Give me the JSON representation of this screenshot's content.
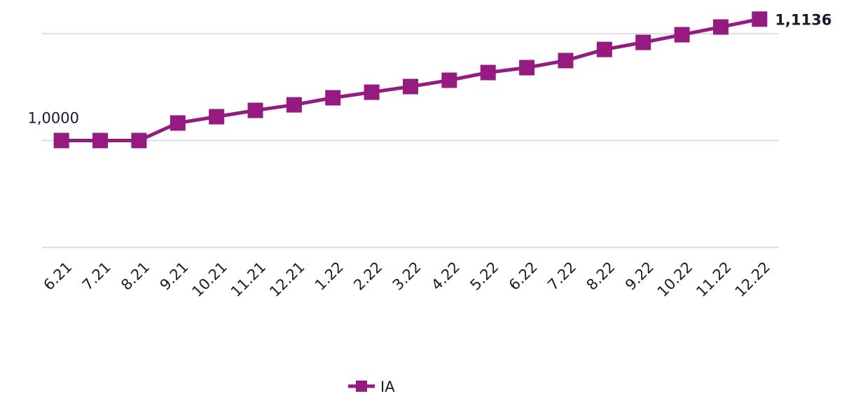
{
  "chart_data": {
    "type": "line",
    "categories": [
      "6.21",
      "7.21",
      "8.21",
      "9.21",
      "10.21",
      "11.21",
      "12.21",
      "1.22",
      "2.22",
      "3.22",
      "4.22",
      "5.22",
      "6.22",
      "7.22",
      "8.22",
      "9.22",
      "10.22",
      "11.22",
      "12.22"
    ],
    "series": [
      {
        "name": "IA",
        "color": "#951b81",
        "values": [
          1.0,
          1.0,
          1.0,
          1.0164,
          1.0223,
          1.0282,
          1.0334,
          1.04,
          1.0452,
          1.0505,
          1.0564,
          1.0636,
          1.0682,
          1.0748,
          1.0852,
          1.0918,
          1.099,
          1.1062,
          1.1136
        ],
        "value_labels": [
          null,
          null,
          null,
          null,
          null,
          null,
          null,
          null,
          null,
          null,
          null,
          null,
          null,
          null,
          null,
          null,
          null,
          null,
          "1,1136"
        ]
      }
    ],
    "ylim": [
      0.9,
      1.1136
    ],
    "yticks": [
      {
        "value": 0.9,
        "label": null
      },
      {
        "value": 1.0,
        "label": "1,0000"
      },
      {
        "value": 1.1,
        "label": null
      }
    ],
    "grid": true,
    "legend": "bottom"
  }
}
